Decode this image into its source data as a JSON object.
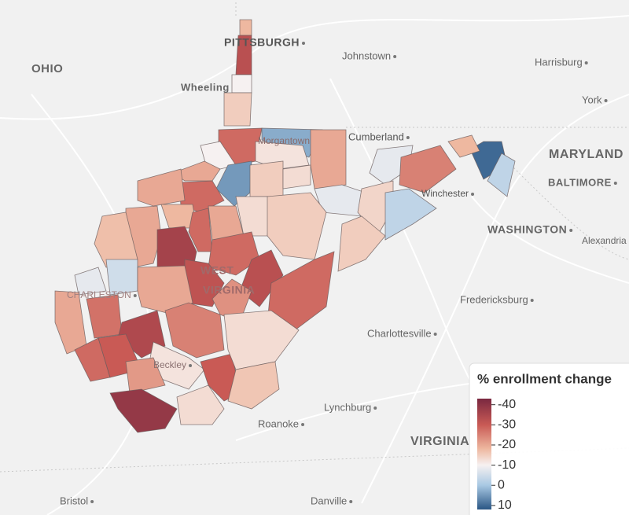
{
  "map": {
    "labels": [
      "PITTSBURGH",
      "Johnstown",
      "OHIO",
      "Harrisburg",
      "Wheeling",
      "York",
      "Cumberland",
      "MARYLAND",
      "BALTIMORE",
      "Morgantown",
      "Winchester",
      "WASHINGTON",
      "Alexandria",
      "WEST",
      "VIRGINIA",
      "CHARLESTON",
      "Fredericksburg",
      "Charlottesville",
      "Beckley",
      "Lynchburg",
      "Roanoke",
      "VIRGINIA",
      "Bristol",
      "Danville"
    ],
    "county_values": [
      -18,
      -33,
      -10,
      -15,
      -28,
      3,
      -10,
      5,
      -12,
      -20,
      -20,
      -28,
      -20,
      -15,
      -13,
      -8,
      -8,
      -25,
      10,
      -3,
      -14,
      -3,
      -15,
      -18,
      -18,
      -20,
      -37,
      -28,
      -20,
      -13,
      -15,
      -28,
      -33,
      -28,
      -32,
      -23,
      -17,
      -8,
      -5,
      -20,
      -20,
      -27,
      -35,
      -25,
      -28,
      -30,
      -12,
      -22,
      -40,
      -30,
      -13,
      -16,
      -13
    ],
    "colorscale": [
      {
        "value": -45,
        "color": "#7a2840"
      },
      {
        "value": -30,
        "color": "#c95a55"
      },
      {
        "value": -18,
        "color": "#eeb8a0"
      },
      {
        "value": -10,
        "color": "#f6f1f1"
      },
      {
        "value": 0,
        "color": "#a8c8e3"
      },
      {
        "value": 12,
        "color": "#2a5684"
      }
    ],
    "legend": {
      "title": "% enrollment change",
      "ticks": [
        -40,
        -30,
        -20,
        -10,
        0,
        10
      ],
      "lim": [
        -43,
        12
      ]
    }
  }
}
